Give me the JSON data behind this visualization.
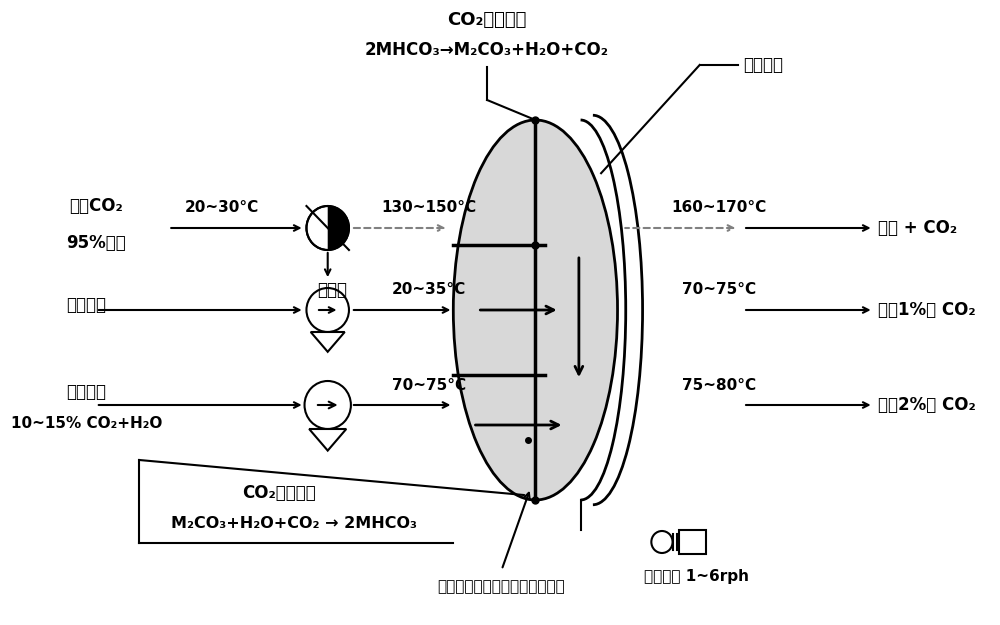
{
  "bg_color": "#ffffff",
  "title_line1": "CO₂再生反应",
  "title_line2": "2MHCO₃→M₂CO₃+H₂O+CO₂",
  "label_cooling_zone": "冷却区域",
  "label_conc_co2_1": "浓缩CO₂",
  "label_conc_co2_2": "95%以上",
  "label_condensate": "冷凝水",
  "label_cooling_air": "冷却空气",
  "label_flue_1": "燃烧废气",
  "label_flue_2": "10~15% CO₂+H₂O",
  "label_absorb_rxn1": "CO₂吸收反应",
  "label_absorb_rxn2": "M₂CO₃+H₂O+CO₂ → 2MHCO₃",
  "label_cylinder": "圆筒形蜂窝二氧化碳干式吸收剂",
  "label_rotation": "旋转速度 1~6rph",
  "label_steam_co2": "螕汽 + CO₂",
  "label_less1pct": "小于1%的 CO₂",
  "label_less2pct": "小于2%的 CO₂",
  "temp_20_30": "20~30°C",
  "temp_130_150": "130~150°C",
  "temp_160_170": "160~170°C",
  "temp_20_35": "20~35°C",
  "temp_70_75_mid": "70~75°C",
  "temp_70_75_right": "70~75°C",
  "temp_75_80": "75~80°C"
}
